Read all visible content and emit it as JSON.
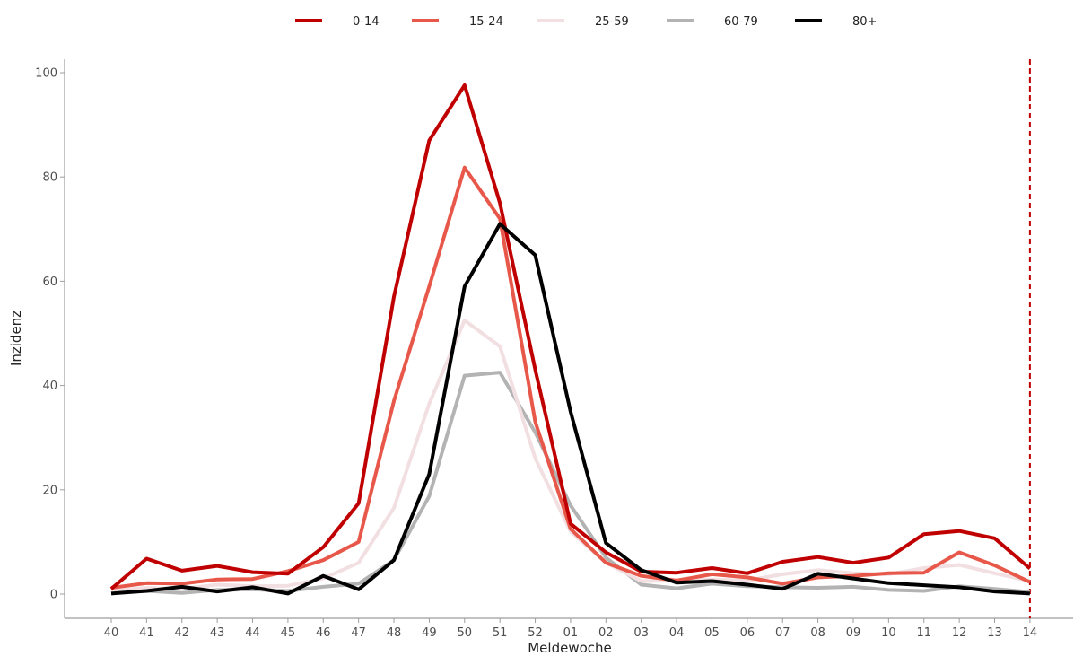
{
  "chart_data": {
    "type": "line",
    "xlabel": "Meldewoche",
    "ylabel": "Inzidenz",
    "categories": [
      "40",
      "41",
      "42",
      "43",
      "44",
      "45",
      "46",
      "47",
      "48",
      "49",
      "50",
      "51",
      "52",
      "01",
      "02",
      "03",
      "04",
      "05",
      "06",
      "07",
      "08",
      "09",
      "10",
      "11",
      "12",
      "13",
      "14"
    ],
    "ylim": [
      0,
      100
    ],
    "yticks": [
      0,
      20,
      40,
      60,
      80,
      100
    ],
    "grid": false,
    "legend_position": "top",
    "reference_line": {
      "category": "14",
      "color": "#c00000",
      "style": "dashed"
    },
    "series": [
      {
        "name": "0-14",
        "color": "#c00000",
        "values": [
          1.0,
          6.8,
          4.5,
          5.4,
          4.2,
          3.9,
          9.0,
          17.4,
          57.0,
          87.0,
          97.6,
          75.0,
          43.0,
          13.5,
          8.0,
          4.3,
          4.1,
          5.0,
          4.0,
          6.2,
          7.1,
          6.0,
          7.0,
          11.5,
          12.1,
          10.7,
          4.9
        ]
      },
      {
        "name": "15-24",
        "color": "#e8584a",
        "values": [
          1.2,
          2.1,
          2.0,
          2.8,
          2.9,
          4.4,
          6.5,
          10.0,
          37.0,
          59.0,
          81.8,
          72.0,
          33.0,
          12.5,
          6.0,
          3.5,
          2.6,
          3.8,
          3.2,
          2.0,
          3.2,
          3.5,
          4.0,
          4.1,
          8.0,
          5.5,
          2.3
        ]
      },
      {
        "name": "25-59",
        "color": "#f2dfe2",
        "values": [
          0.6,
          1.2,
          1.0,
          1.8,
          1.5,
          1.6,
          3.0,
          6.0,
          16.5,
          36.5,
          52.5,
          47.5,
          26.0,
          12.0,
          6.0,
          2.5,
          2.6,
          2.8,
          2.6,
          3.8,
          4.6,
          4.0,
          3.8,
          5.0,
          5.6,
          4.0,
          2.5
        ]
      },
      {
        "name": "60-79",
        "color": "#b3b3b3",
        "values": [
          0.4,
          0.6,
          0.2,
          0.8,
          0.9,
          0.6,
          1.4,
          2.0,
          6.5,
          18.8,
          41.9,
          42.5,
          31.0,
          17.0,
          7.0,
          1.8,
          1.1,
          2.0,
          1.5,
          1.3,
          1.2,
          1.4,
          0.8,
          0.6,
          1.5,
          1.0,
          0.4
        ]
      },
      {
        "name": "80+",
        "color": "#000000",
        "values": [
          0.1,
          0.6,
          1.4,
          0.5,
          1.3,
          0.1,
          3.5,
          0.9,
          6.5,
          23.0,
          59.0,
          71.0,
          65.0,
          35.0,
          9.8,
          4.6,
          2.2,
          2.5,
          1.8,
          1.0,
          3.9,
          3.0,
          2.1,
          1.7,
          1.3,
          0.5,
          0.1
        ]
      }
    ]
  }
}
